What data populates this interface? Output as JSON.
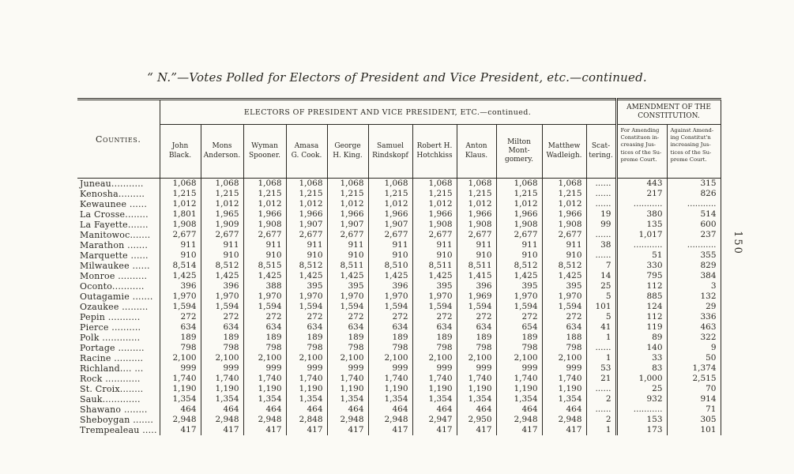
{
  "colors": {
    "paper": "#fbfaf5",
    "ink": "#2a2822"
  },
  "page": {
    "title": "“ N.”—Votes Polled for Electors of President and Vice President, etc.—continued.",
    "page_number": "150"
  },
  "table": {
    "counties_header": "Counties.",
    "electors_header": "ELECTORS OF PRESIDENT AND VICE PRESIDENT, ETC.—continued.",
    "amendment_header": "AMENDMENT OF THE\nCONSTITUTION.",
    "columns": [
      "John\nBlack.",
      "Mons\nAnderson.",
      "Wyman\nSpooner.",
      "Amasa\nG. Cook.",
      "George\nH. King.",
      "Samuel\nRindskopf",
      "Robert H.\nHotchkiss",
      "Anton\nKlaus.",
      "Milton\nMont-\ngomery.",
      "Matthew\nWadleigh.",
      "Scat-\ntering."
    ],
    "amendment_columns": [
      "For Amending\nConstituon in-\ncreasing Jus-\ntices of the Su-\npreme Court.",
      "Against Amend-\ning Constitut'n\nincreasing Jus-\ntices of the Su-\npreme Court."
    ],
    "rows": [
      {
        "county": "Juneau...........",
        "values": [
          "1,068",
          "1,068",
          "1,068",
          "1,068",
          "1,068",
          "1,068",
          "1,068",
          "1,068",
          "1,068",
          "1,068",
          "......",
          "443",
          "315"
        ]
      },
      {
        "county": "Kenosha.........",
        "values": [
          "1,215",
          "1,215",
          "1,215",
          "1,215",
          "1,215",
          "1,215",
          "1,215",
          "1,215",
          "1,215",
          "1,215",
          "......",
          "217",
          "826"
        ]
      },
      {
        "county": "Kewaunee ......",
        "values": [
          "1,012",
          "1,012",
          "1,012",
          "1,012",
          "1,012",
          "1,012",
          "1,012",
          "1,012",
          "1,012",
          "1,012",
          "......",
          "...........",
          "..........."
        ]
      },
      {
        "county": "La Crosse........",
        "values": [
          "1,801",
          "1,965",
          "1,966",
          "1,966",
          "1,966",
          "1,966",
          "1,966",
          "1,966",
          "1,966",
          "1,966",
          "19",
          "380",
          "514"
        ]
      },
      {
        "county": "La Fayette.......",
        "values": [
          "1,908",
          "1,909",
          "1,908",
          "1,907",
          "1,907",
          "1,907",
          "1,908",
          "1,908",
          "1,908",
          "1,908",
          "99",
          "135",
          "600"
        ]
      },
      {
        "county": "Manitowoc.......",
        "values": [
          "2,677",
          "2,677",
          "2,677",
          "2,677",
          "2,677",
          "2,677",
          "2,677",
          "2,677",
          "2,677",
          "2,677",
          "......",
          "1,017",
          "237"
        ]
      },
      {
        "county": "Marathon .......",
        "values": [
          "911",
          "911",
          "911",
          "911",
          "911",
          "911",
          "911",
          "911",
          "911",
          "911",
          "38",
          "...........",
          "..........."
        ]
      },
      {
        "county": "Marquette ......",
        "values": [
          "910",
          "910",
          "910",
          "910",
          "910",
          "910",
          "910",
          "910",
          "910",
          "910",
          "......",
          "51",
          "355"
        ]
      },
      {
        "county": "Milwaukee ......",
        "values": [
          "8,514",
          "8,512",
          "8,515",
          "8,512",
          "8,511",
          "8,510",
          "8,511",
          "8,511",
          "8,512",
          "8,512",
          "7",
          "330",
          "829"
        ]
      },
      {
        "county": "Monroe ..........",
        "values": [
          "1,425",
          "1,425",
          "1,425",
          "1,425",
          "1,425",
          "1,425",
          "1,425",
          "1,415",
          "1,425",
          "1,425",
          "14",
          "795",
          "384"
        ]
      },
      {
        "county": "Oconto...........",
        "values": [
          "396",
          "396",
          "388",
          "395",
          "395",
          "396",
          "395",
          "396",
          "395",
          "395",
          "25",
          "112",
          "3"
        ]
      },
      {
        "county": "Outagamie .......",
        "values": [
          "1,970",
          "1,970",
          "1,970",
          "1,970",
          "1,970",
          "1,970",
          "1,970",
          "1,969",
          "1,970",
          "1,970",
          "5",
          "885",
          "132"
        ]
      },
      {
        "county": "Ozaukee .........",
        "values": [
          "1,594",
          "1,594",
          "1,594",
          "1,594",
          "1,594",
          "1,594",
          "1,594",
          "1,594",
          "1,594",
          "1,594",
          "101",
          "124",
          "29"
        ]
      },
      {
        "county": "Pepin ...........",
        "values": [
          "272",
          "272",
          "272",
          "272",
          "272",
          "272",
          "272",
          "272",
          "272",
          "272",
          "5",
          "112",
          "336"
        ]
      },
      {
        "county": "Pierce ..........",
        "values": [
          "634",
          "634",
          "634",
          "634",
          "634",
          "634",
          "634",
          "634",
          "654",
          "634",
          "41",
          "119",
          "463"
        ]
      },
      {
        "county": "Polk .............",
        "values": [
          "189",
          "189",
          "189",
          "189",
          "189",
          "189",
          "189",
          "189",
          "189",
          "188",
          "1",
          "89",
          "322"
        ]
      },
      {
        "county": "Portage .........",
        "values": [
          "798",
          "798",
          "798",
          "798",
          "798",
          "798",
          "798",
          "798",
          "798",
          "798",
          "......",
          "140",
          "9"
        ]
      },
      {
        "county": "Racine ..........",
        "values": [
          "2,100",
          "2,100",
          "2,100",
          "2,100",
          "2,100",
          "2,100",
          "2,100",
          "2,100",
          "2,100",
          "2,100",
          "1",
          "33",
          "50"
        ]
      },
      {
        "county": "Richland.... ...",
        "values": [
          "999",
          "999",
          "999",
          "999",
          "999",
          "999",
          "999",
          "999",
          "999",
          "999",
          "53",
          "83",
          "1,374"
        ]
      },
      {
        "county": "Rock ............",
        "values": [
          "1,740",
          "1,740",
          "1,740",
          "1,740",
          "1,740",
          "1,740",
          "1,740",
          "1,740",
          "1,740",
          "1,740",
          "21",
          "1,000",
          "2,515"
        ]
      },
      {
        "county": "St. Croix........",
        "values": [
          "1,190",
          "1,190",
          "1,190",
          "1,190",
          "1,190",
          "1,190",
          "1,190",
          "1,190",
          "1,190",
          "1,190",
          "......",
          "25",
          "70"
        ]
      },
      {
        "county": "Sauk.............",
        "values": [
          "1,354",
          "1,354",
          "1,354",
          "1,354",
          "1,354",
          "1,354",
          "1,354",
          "1,354",
          "1,354",
          "1,354",
          "2",
          "932",
          "914"
        ]
      },
      {
        "county": "Shawano ........",
        "values": [
          "464",
          "464",
          "464",
          "464",
          "464",
          "464",
          "464",
          "464",
          "464",
          "464",
          "......",
          "...........",
          "71"
        ]
      },
      {
        "county": "Sheboygan .......",
        "values": [
          "2,948",
          "2,948",
          "2,948",
          "2,848",
          "2,948",
          "2,948",
          "2,947",
          "2,950",
          "2,948",
          "2,948",
          "2",
          "153",
          "305"
        ]
      },
      {
        "county": "Trempealeau .....",
        "values": [
          "417",
          "417",
          "417",
          "417",
          "417",
          "417",
          "417",
          "417",
          "417",
          "417",
          "1",
          "173",
          "101"
        ]
      }
    ]
  }
}
